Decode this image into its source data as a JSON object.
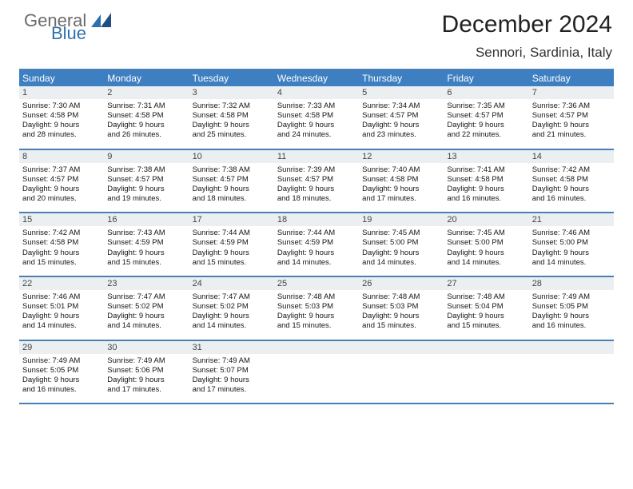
{
  "logo": {
    "text1": "General",
    "text2": "Blue",
    "color_general": "#6b6b6b",
    "color_blue": "#2f6fae"
  },
  "title": "December 2024",
  "location": "Sennori, Sardinia, Italy",
  "theme": {
    "header_bar_color": "#3e7fc1",
    "header_text_color": "#ffffff",
    "rule_color": "#4a7fb5",
    "daynum_bg": "#eceff1",
    "body_text_color": "#161616",
    "daynum_text_color": "#444444"
  },
  "day_headers": [
    "Sunday",
    "Monday",
    "Tuesday",
    "Wednesday",
    "Thursday",
    "Friday",
    "Saturday"
  ],
  "weeks": [
    [
      {
        "day": "1",
        "sunrise": "Sunrise: 7:30 AM",
        "sunset": "Sunset: 4:58 PM",
        "dl1": "Daylight: 9 hours",
        "dl2": "and 28 minutes."
      },
      {
        "day": "2",
        "sunrise": "Sunrise: 7:31 AM",
        "sunset": "Sunset: 4:58 PM",
        "dl1": "Daylight: 9 hours",
        "dl2": "and 26 minutes."
      },
      {
        "day": "3",
        "sunrise": "Sunrise: 7:32 AM",
        "sunset": "Sunset: 4:58 PM",
        "dl1": "Daylight: 9 hours",
        "dl2": "and 25 minutes."
      },
      {
        "day": "4",
        "sunrise": "Sunrise: 7:33 AM",
        "sunset": "Sunset: 4:58 PM",
        "dl1": "Daylight: 9 hours",
        "dl2": "and 24 minutes."
      },
      {
        "day": "5",
        "sunrise": "Sunrise: 7:34 AM",
        "sunset": "Sunset: 4:57 PM",
        "dl1": "Daylight: 9 hours",
        "dl2": "and 23 minutes."
      },
      {
        "day": "6",
        "sunrise": "Sunrise: 7:35 AM",
        "sunset": "Sunset: 4:57 PM",
        "dl1": "Daylight: 9 hours",
        "dl2": "and 22 minutes."
      },
      {
        "day": "7",
        "sunrise": "Sunrise: 7:36 AM",
        "sunset": "Sunset: 4:57 PM",
        "dl1": "Daylight: 9 hours",
        "dl2": "and 21 minutes."
      }
    ],
    [
      {
        "day": "8",
        "sunrise": "Sunrise: 7:37 AM",
        "sunset": "Sunset: 4:57 PM",
        "dl1": "Daylight: 9 hours",
        "dl2": "and 20 minutes."
      },
      {
        "day": "9",
        "sunrise": "Sunrise: 7:38 AM",
        "sunset": "Sunset: 4:57 PM",
        "dl1": "Daylight: 9 hours",
        "dl2": "and 19 minutes."
      },
      {
        "day": "10",
        "sunrise": "Sunrise: 7:38 AM",
        "sunset": "Sunset: 4:57 PM",
        "dl1": "Daylight: 9 hours",
        "dl2": "and 18 minutes."
      },
      {
        "day": "11",
        "sunrise": "Sunrise: 7:39 AM",
        "sunset": "Sunset: 4:57 PM",
        "dl1": "Daylight: 9 hours",
        "dl2": "and 18 minutes."
      },
      {
        "day": "12",
        "sunrise": "Sunrise: 7:40 AM",
        "sunset": "Sunset: 4:58 PM",
        "dl1": "Daylight: 9 hours",
        "dl2": "and 17 minutes."
      },
      {
        "day": "13",
        "sunrise": "Sunrise: 7:41 AM",
        "sunset": "Sunset: 4:58 PM",
        "dl1": "Daylight: 9 hours",
        "dl2": "and 16 minutes."
      },
      {
        "day": "14",
        "sunrise": "Sunrise: 7:42 AM",
        "sunset": "Sunset: 4:58 PM",
        "dl1": "Daylight: 9 hours",
        "dl2": "and 16 minutes."
      }
    ],
    [
      {
        "day": "15",
        "sunrise": "Sunrise: 7:42 AM",
        "sunset": "Sunset: 4:58 PM",
        "dl1": "Daylight: 9 hours",
        "dl2": "and 15 minutes."
      },
      {
        "day": "16",
        "sunrise": "Sunrise: 7:43 AM",
        "sunset": "Sunset: 4:59 PM",
        "dl1": "Daylight: 9 hours",
        "dl2": "and 15 minutes."
      },
      {
        "day": "17",
        "sunrise": "Sunrise: 7:44 AM",
        "sunset": "Sunset: 4:59 PM",
        "dl1": "Daylight: 9 hours",
        "dl2": "and 15 minutes."
      },
      {
        "day": "18",
        "sunrise": "Sunrise: 7:44 AM",
        "sunset": "Sunset: 4:59 PM",
        "dl1": "Daylight: 9 hours",
        "dl2": "and 14 minutes."
      },
      {
        "day": "19",
        "sunrise": "Sunrise: 7:45 AM",
        "sunset": "Sunset: 5:00 PM",
        "dl1": "Daylight: 9 hours",
        "dl2": "and 14 minutes."
      },
      {
        "day": "20",
        "sunrise": "Sunrise: 7:45 AM",
        "sunset": "Sunset: 5:00 PM",
        "dl1": "Daylight: 9 hours",
        "dl2": "and 14 minutes."
      },
      {
        "day": "21",
        "sunrise": "Sunrise: 7:46 AM",
        "sunset": "Sunset: 5:00 PM",
        "dl1": "Daylight: 9 hours",
        "dl2": "and 14 minutes."
      }
    ],
    [
      {
        "day": "22",
        "sunrise": "Sunrise: 7:46 AM",
        "sunset": "Sunset: 5:01 PM",
        "dl1": "Daylight: 9 hours",
        "dl2": "and 14 minutes."
      },
      {
        "day": "23",
        "sunrise": "Sunrise: 7:47 AM",
        "sunset": "Sunset: 5:02 PM",
        "dl1": "Daylight: 9 hours",
        "dl2": "and 14 minutes."
      },
      {
        "day": "24",
        "sunrise": "Sunrise: 7:47 AM",
        "sunset": "Sunset: 5:02 PM",
        "dl1": "Daylight: 9 hours",
        "dl2": "and 14 minutes."
      },
      {
        "day": "25",
        "sunrise": "Sunrise: 7:48 AM",
        "sunset": "Sunset: 5:03 PM",
        "dl1": "Daylight: 9 hours",
        "dl2": "and 15 minutes."
      },
      {
        "day": "26",
        "sunrise": "Sunrise: 7:48 AM",
        "sunset": "Sunset: 5:03 PM",
        "dl1": "Daylight: 9 hours",
        "dl2": "and 15 minutes."
      },
      {
        "day": "27",
        "sunrise": "Sunrise: 7:48 AM",
        "sunset": "Sunset: 5:04 PM",
        "dl1": "Daylight: 9 hours",
        "dl2": "and 15 minutes."
      },
      {
        "day": "28",
        "sunrise": "Sunrise: 7:49 AM",
        "sunset": "Sunset: 5:05 PM",
        "dl1": "Daylight: 9 hours",
        "dl2": "and 16 minutes."
      }
    ],
    [
      {
        "day": "29",
        "sunrise": "Sunrise: 7:49 AM",
        "sunset": "Sunset: 5:05 PM",
        "dl1": "Daylight: 9 hours",
        "dl2": "and 16 minutes."
      },
      {
        "day": "30",
        "sunrise": "Sunrise: 7:49 AM",
        "sunset": "Sunset: 5:06 PM",
        "dl1": "Daylight: 9 hours",
        "dl2": "and 17 minutes."
      },
      {
        "day": "31",
        "sunrise": "Sunrise: 7:49 AM",
        "sunset": "Sunset: 5:07 PM",
        "dl1": "Daylight: 9 hours",
        "dl2": "and 17 minutes."
      },
      {
        "day": "",
        "sunrise": "",
        "sunset": "",
        "dl1": "",
        "dl2": ""
      },
      {
        "day": "",
        "sunrise": "",
        "sunset": "",
        "dl1": "",
        "dl2": ""
      },
      {
        "day": "",
        "sunrise": "",
        "sunset": "",
        "dl1": "",
        "dl2": ""
      },
      {
        "day": "",
        "sunrise": "",
        "sunset": "",
        "dl1": "",
        "dl2": ""
      }
    ]
  ]
}
